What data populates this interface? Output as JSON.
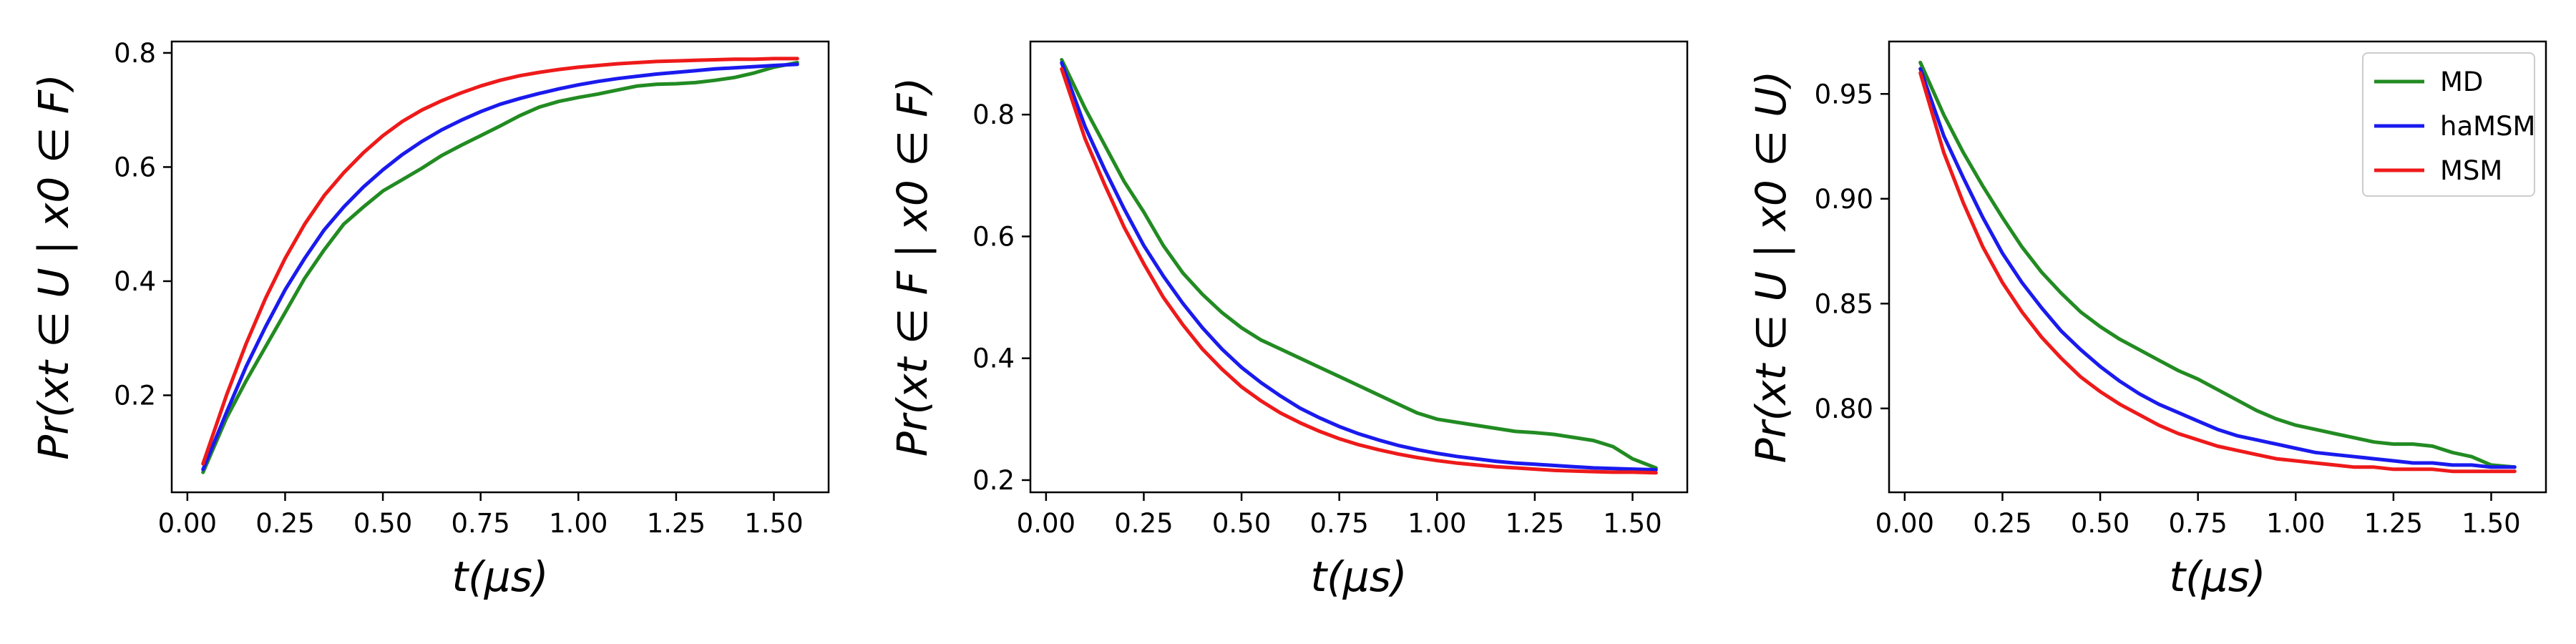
{
  "chart_data": [
    {
      "type": "line",
      "xlabel": "t(μs)",
      "ylabel": "Pr(xt ∈ U | x0 ∈ F)",
      "xlim": [
        -0.04,
        1.64
      ],
      "ylim": [
        0.03,
        0.82
      ],
      "xticks": [
        0.0,
        0.25,
        0.5,
        0.75,
        1.0,
        1.25,
        1.5
      ],
      "xtick_labels": [
        "0.00",
        "0.25",
        "0.50",
        "0.75",
        "1.00",
        "1.25",
        "1.50"
      ],
      "yticks": [
        0.2,
        0.4,
        0.6,
        0.8
      ],
      "ytick_labels": [
        "0.2",
        "0.4",
        "0.6",
        "0.8"
      ],
      "grid": false,
      "x": [
        0.04,
        0.1,
        0.15,
        0.2,
        0.25,
        0.3,
        0.35,
        0.4,
        0.45,
        0.5,
        0.55,
        0.6,
        0.65,
        0.7,
        0.75,
        0.8,
        0.85,
        0.9,
        0.95,
        1.0,
        1.05,
        1.1,
        1.15,
        1.2,
        1.25,
        1.3,
        1.35,
        1.4,
        1.45,
        1.5,
        1.56
      ],
      "series": [
        {
          "name": "MD",
          "color": "#228b22",
          "values": [
            0.065,
            0.16,
            0.225,
            0.285,
            0.345,
            0.405,
            0.455,
            0.5,
            0.53,
            0.558,
            0.578,
            0.598,
            0.62,
            0.638,
            0.655,
            0.672,
            0.69,
            0.705,
            0.715,
            0.722,
            0.728,
            0.735,
            0.742,
            0.745,
            0.746,
            0.748,
            0.752,
            0.757,
            0.765,
            0.775,
            0.783
          ]
        },
        {
          "name": "haMSM",
          "color": "#1a1aee",
          "values": [
            0.07,
            0.17,
            0.25,
            0.32,
            0.385,
            0.44,
            0.49,
            0.53,
            0.565,
            0.595,
            0.622,
            0.645,
            0.665,
            0.682,
            0.697,
            0.71,
            0.72,
            0.729,
            0.737,
            0.744,
            0.75,
            0.755,
            0.759,
            0.763,
            0.766,
            0.769,
            0.772,
            0.774,
            0.776,
            0.778,
            0.78
          ]
        },
        {
          "name": "MSM",
          "color": "#ee1a1a",
          "values": [
            0.08,
            0.2,
            0.29,
            0.37,
            0.44,
            0.5,
            0.55,
            0.59,
            0.625,
            0.655,
            0.68,
            0.7,
            0.716,
            0.73,
            0.742,
            0.752,
            0.76,
            0.766,
            0.771,
            0.775,
            0.778,
            0.781,
            0.783,
            0.785,
            0.786,
            0.787,
            0.788,
            0.789,
            0.789,
            0.79,
            0.79
          ]
        }
      ]
    },
    {
      "type": "line",
      "xlabel": "t(μs)",
      "ylabel": "Pr(xt ∈ F | x0 ∈ F)",
      "xlim": [
        -0.04,
        1.64
      ],
      "ylim": [
        0.18,
        0.92
      ],
      "xticks": [
        0.0,
        0.25,
        0.5,
        0.75,
        1.0,
        1.25,
        1.5
      ],
      "xtick_labels": [
        "0.00",
        "0.25",
        "0.50",
        "0.75",
        "1.00",
        "1.25",
        "1.50"
      ],
      "yticks": [
        0.2,
        0.4,
        0.6,
        0.8
      ],
      "ytick_labels": [
        "0.2",
        "0.4",
        "0.6",
        "0.8"
      ],
      "grid": false,
      "x": [
        0.04,
        0.1,
        0.15,
        0.2,
        0.25,
        0.3,
        0.35,
        0.4,
        0.45,
        0.5,
        0.55,
        0.6,
        0.65,
        0.7,
        0.75,
        0.8,
        0.85,
        0.9,
        0.95,
        1.0,
        1.05,
        1.1,
        1.15,
        1.2,
        1.25,
        1.3,
        1.35,
        1.4,
        1.45,
        1.5,
        1.56
      ],
      "series": [
        {
          "name": "MD",
          "color": "#228b22",
          "values": [
            0.89,
            0.81,
            0.75,
            0.69,
            0.64,
            0.585,
            0.54,
            0.505,
            0.475,
            0.45,
            0.43,
            0.415,
            0.4,
            0.385,
            0.37,
            0.355,
            0.34,
            0.325,
            0.31,
            0.3,
            0.295,
            0.29,
            0.285,
            0.28,
            0.278,
            0.275,
            0.27,
            0.265,
            0.255,
            0.235,
            0.22
          ]
        },
        {
          "name": "haMSM",
          "color": "#1a1aee",
          "values": [
            0.885,
            0.78,
            0.71,
            0.645,
            0.585,
            0.535,
            0.49,
            0.45,
            0.415,
            0.385,
            0.36,
            0.338,
            0.318,
            0.302,
            0.288,
            0.276,
            0.266,
            0.257,
            0.25,
            0.244,
            0.239,
            0.235,
            0.231,
            0.228,
            0.226,
            0.224,
            0.222,
            0.22,
            0.219,
            0.218,
            0.217
          ]
        },
        {
          "name": "MSM",
          "color": "#ee1a1a",
          "values": [
            0.875,
            0.76,
            0.685,
            0.615,
            0.555,
            0.5,
            0.455,
            0.415,
            0.382,
            0.353,
            0.33,
            0.31,
            0.294,
            0.28,
            0.268,
            0.258,
            0.25,
            0.243,
            0.237,
            0.232,
            0.228,
            0.225,
            0.222,
            0.22,
            0.218,
            0.216,
            0.215,
            0.214,
            0.213,
            0.213,
            0.212
          ]
        }
      ]
    },
    {
      "type": "line",
      "xlabel": "t(μs)",
      "ylabel": "Pr(xt ∈ U | x0 ∈ U)",
      "xlim": [
        -0.04,
        1.64
      ],
      "ylim": [
        0.76,
        0.975
      ],
      "xticks": [
        0.0,
        0.25,
        0.5,
        0.75,
        1.0,
        1.25,
        1.5
      ],
      "xtick_labels": [
        "0.00",
        "0.25",
        "0.50",
        "0.75",
        "1.00",
        "1.25",
        "1.50"
      ],
      "yticks": [
        0.8,
        0.85,
        0.9,
        0.95
      ],
      "ytick_labels": [
        "0.80",
        "0.85",
        "0.90",
        "0.95"
      ],
      "grid": false,
      "legend": {
        "placement": "top-right",
        "entries": [
          "MD",
          "haMSM",
          "MSM"
        ]
      },
      "x": [
        0.04,
        0.1,
        0.15,
        0.2,
        0.25,
        0.3,
        0.35,
        0.4,
        0.45,
        0.5,
        0.55,
        0.6,
        0.65,
        0.7,
        0.75,
        0.8,
        0.85,
        0.9,
        0.95,
        1.0,
        1.05,
        1.1,
        1.15,
        1.2,
        1.25,
        1.3,
        1.35,
        1.4,
        1.45,
        1.5,
        1.56
      ],
      "series": [
        {
          "name": "MD",
          "color": "#228b22",
          "values": [
            0.965,
            0.94,
            0.922,
            0.906,
            0.891,
            0.877,
            0.865,
            0.855,
            0.846,
            0.839,
            0.833,
            0.828,
            0.823,
            0.818,
            0.814,
            0.809,
            0.804,
            0.799,
            0.795,
            0.792,
            0.79,
            0.788,
            0.786,
            0.784,
            0.783,
            0.783,
            0.782,
            0.779,
            0.777,
            0.773,
            0.772
          ]
        },
        {
          "name": "haMSM",
          "color": "#1a1aee",
          "values": [
            0.962,
            0.93,
            0.91,
            0.891,
            0.874,
            0.86,
            0.848,
            0.837,
            0.828,
            0.82,
            0.813,
            0.807,
            0.802,
            0.798,
            0.794,
            0.79,
            0.787,
            0.785,
            0.783,
            0.781,
            0.779,
            0.778,
            0.777,
            0.776,
            0.775,
            0.774,
            0.774,
            0.773,
            0.773,
            0.772,
            0.772
          ]
        },
        {
          "name": "MSM",
          "color": "#ee1a1a",
          "values": [
            0.96,
            0.922,
            0.898,
            0.877,
            0.86,
            0.846,
            0.834,
            0.824,
            0.815,
            0.808,
            0.802,
            0.797,
            0.792,
            0.788,
            0.785,
            0.782,
            0.78,
            0.778,
            0.776,
            0.775,
            0.774,
            0.773,
            0.772,
            0.772,
            0.771,
            0.771,
            0.771,
            0.77,
            0.77,
            0.77,
            0.77
          ]
        }
      ]
    }
  ]
}
